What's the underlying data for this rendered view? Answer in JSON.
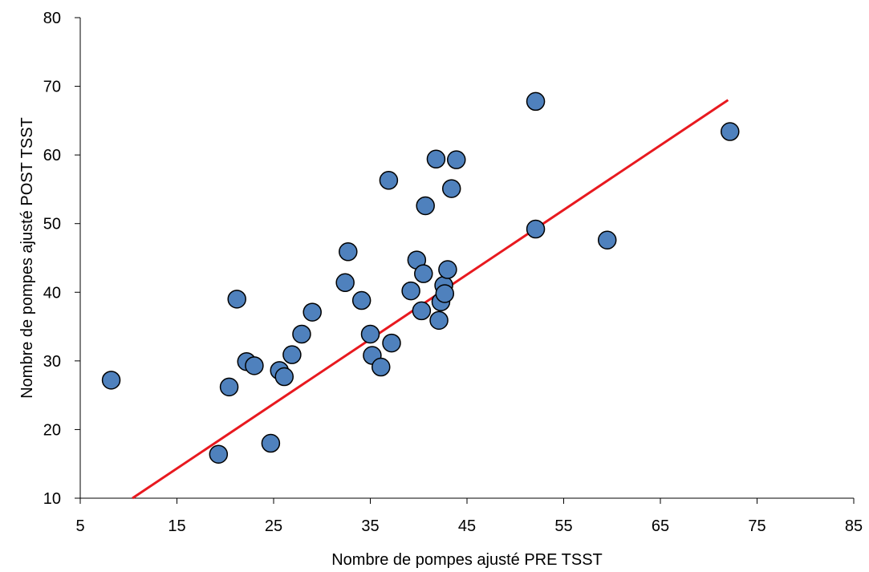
{
  "chart_data": {
    "type": "scatter",
    "title": "",
    "xlabel": "Nombre de pompes ajusté PRE TSST",
    "ylabel": "Nombre de pompes ajusté POST TSST",
    "xlim": [
      5,
      85
    ],
    "ylim": [
      10,
      80
    ],
    "xticks": [
      5,
      15,
      25,
      35,
      45,
      55,
      65,
      75,
      85
    ],
    "yticks": [
      10,
      20,
      30,
      40,
      50,
      60,
      70,
      80
    ],
    "grid": false,
    "legend": "none",
    "colors": {
      "marker_fill": "#4f81bd",
      "marker_stroke": "#000000",
      "line": "#e8191f",
      "axis": "#000000"
    },
    "series": [
      {
        "points": [
          [
            8.2,
            27.2
          ],
          [
            19.3,
            16.4
          ],
          [
            20.4,
            26.2
          ],
          [
            21.2,
            39.0
          ],
          [
            22.2,
            29.9
          ],
          [
            23.0,
            29.3
          ],
          [
            24.7,
            18.0
          ],
          [
            25.6,
            28.6
          ],
          [
            26.1,
            27.7
          ],
          [
            26.9,
            30.9
          ],
          [
            27.9,
            33.9
          ],
          [
            29.0,
            37.1
          ],
          [
            32.4,
            41.4
          ],
          [
            32.7,
            45.9
          ],
          [
            34.1,
            38.8
          ],
          [
            35.0,
            33.9
          ],
          [
            35.2,
            30.8
          ],
          [
            36.1,
            29.1
          ],
          [
            36.9,
            56.3
          ],
          [
            37.2,
            32.6
          ],
          [
            39.2,
            40.2
          ],
          [
            39.8,
            44.7
          ],
          [
            40.3,
            37.3
          ],
          [
            40.5,
            42.7
          ],
          [
            40.7,
            52.6
          ],
          [
            41.8,
            59.4
          ],
          [
            42.1,
            35.9
          ],
          [
            42.3,
            38.6
          ],
          [
            42.6,
            41.0
          ],
          [
            42.7,
            39.8
          ],
          [
            43.0,
            43.3
          ],
          [
            43.4,
            55.1
          ],
          [
            43.9,
            59.3
          ],
          [
            52.1,
            49.2
          ],
          [
            52.1,
            67.8
          ],
          [
            59.5,
            47.6
          ],
          [
            72.2,
            63.4
          ]
        ]
      }
    ],
    "trendline": {
      "type": "linear",
      "from": [
        10.4,
        10.0
      ],
      "to": [
        72.0,
        68.0
      ]
    }
  }
}
